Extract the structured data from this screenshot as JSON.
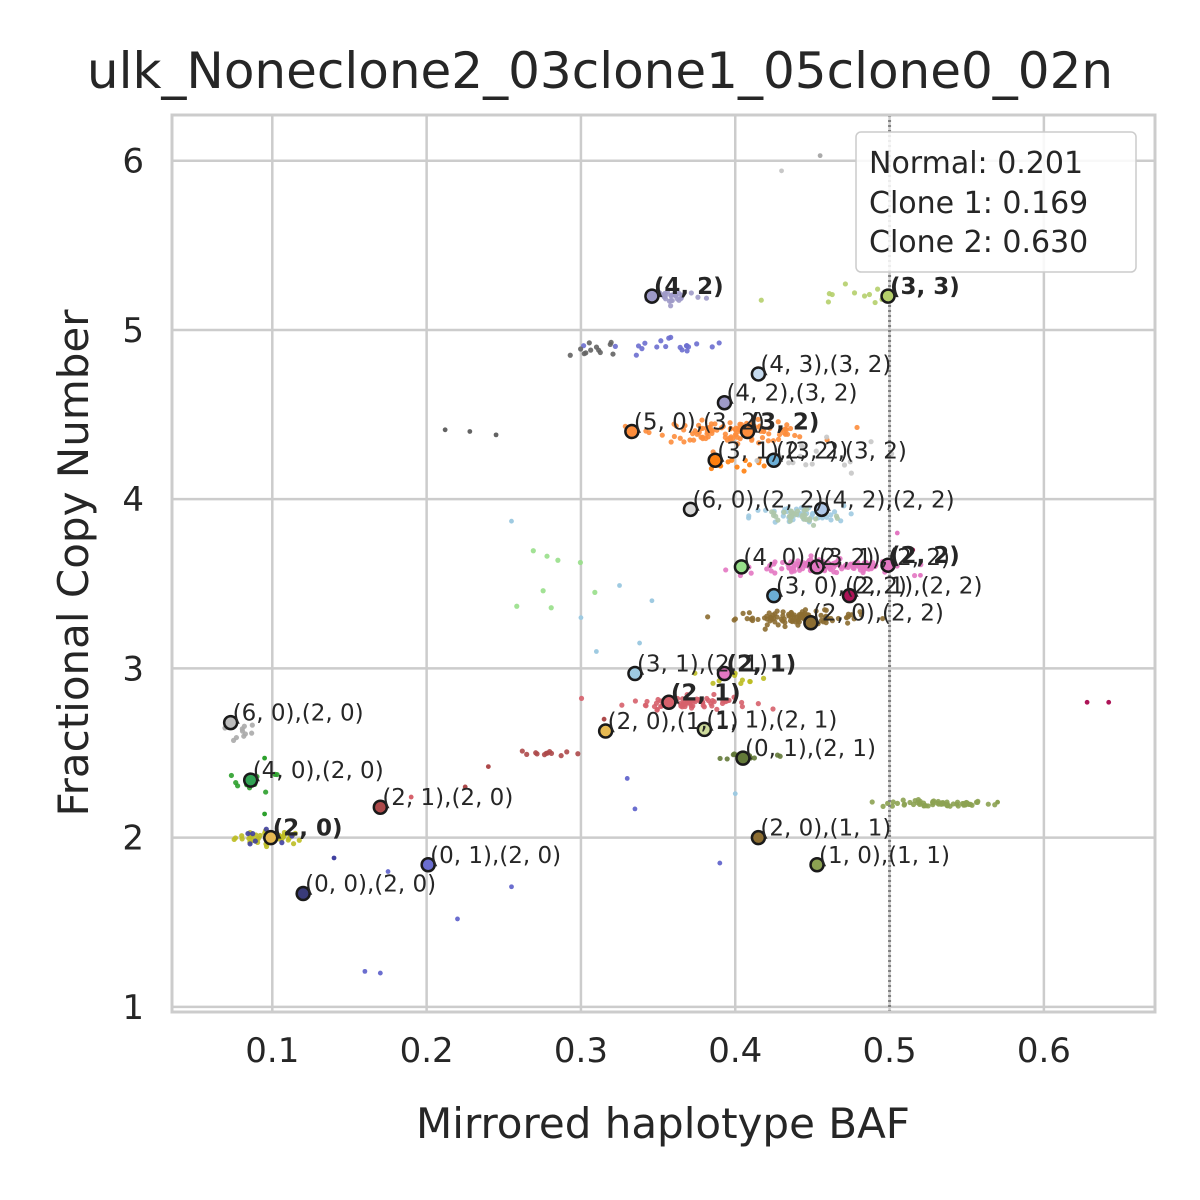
{
  "chart_data": {
    "type": "scatter",
    "title": "ulk_Noneclone2_03clone1_05clone0_02n",
    "xlabel": "Mirrored haplotype BAF",
    "ylabel": "Fractional Copy Number",
    "xlim": [
      0.035,
      0.672
    ],
    "ylim": [
      0.97,
      6.27
    ],
    "x_ticks": [
      "0.1",
      "0.2",
      "0.3",
      "0.4",
      "0.5",
      "0.6"
    ],
    "y_ticks": [
      "1",
      "2",
      "3",
      "4",
      "5",
      "6"
    ],
    "grid": true,
    "legend_location": "top-right",
    "legend": [
      "Normal: 0.201",
      "Clone 1: 0.169",
      "Clone 2: 0.630"
    ],
    "reference_line": {
      "x": 0.5,
      "style": "dotted",
      "color": "#808080"
    },
    "clusters": [
      {
        "x": 0.1,
        "y": 2.0,
        "color": "#bcbd22",
        "n": 40,
        "sx": 0.012,
        "sy": 0.02
      },
      {
        "x": 0.09,
        "y": 2.33,
        "color": "#2ca02c",
        "n": 14,
        "sx": 0.008,
        "sy": 0.03
      },
      {
        "x": 0.075,
        "y": 2.62,
        "color": "#aaaaaa",
        "n": 10,
        "sx": 0.008,
        "sy": 0.03
      },
      {
        "x": 0.095,
        "y": 2.0,
        "color": "#4040a0",
        "n": 8,
        "sx": 0.01,
        "sy": 0.03
      },
      {
        "x": 0.53,
        "y": 2.2,
        "color": "#8ca252",
        "n": 60,
        "sx": 0.018,
        "sy": 0.01
      },
      {
        "x": 0.37,
        "y": 2.8,
        "color": "#d6616b",
        "n": 70,
        "sx": 0.02,
        "sy": 0.02
      },
      {
        "x": 0.28,
        "y": 2.5,
        "color": "#ad494a",
        "n": 12,
        "sx": 0.01,
        "sy": 0.01
      },
      {
        "x": 0.44,
        "y": 3.3,
        "color": "#8c6d31",
        "n": 100,
        "sx": 0.02,
        "sy": 0.02
      },
      {
        "x": 0.46,
        "y": 3.6,
        "color": "#e377c2",
        "n": 140,
        "sx": 0.025,
        "sy": 0.02
      },
      {
        "x": 0.4,
        "y": 4.4,
        "color": "#fd8d3c",
        "n": 110,
        "sx": 0.025,
        "sy": 0.03
      },
      {
        "x": 0.44,
        "y": 3.9,
        "color": "#9ecae1",
        "n": 40,
        "sx": 0.015,
        "sy": 0.03
      },
      {
        "x": 0.44,
        "y": 3.9,
        "color": "#aec7aa",
        "n": 30,
        "sx": 0.015,
        "sy": 0.03
      },
      {
        "x": 0.36,
        "y": 5.2,
        "color": "#9e9ac8",
        "n": 30,
        "sx": 0.01,
        "sy": 0.02
      },
      {
        "x": 0.36,
        "y": 4.9,
        "color": "#6b6ecf",
        "n": 20,
        "sx": 0.02,
        "sy": 0.03
      },
      {
        "x": 0.46,
        "y": 5.2,
        "color": "#b5cf6b",
        "n": 10,
        "sx": 0.02,
        "sy": 0.04
      },
      {
        "x": 0.31,
        "y": 4.9,
        "color": "#636363",
        "n": 12,
        "sx": 0.01,
        "sy": 0.03
      },
      {
        "x": 0.41,
        "y": 2.48,
        "color": "#637939",
        "n": 12,
        "sx": 0.008,
        "sy": 0.01
      },
      {
        "x": 0.4,
        "y": 2.95,
        "color": "#bcbd22",
        "n": 10,
        "sx": 0.01,
        "sy": 0.02
      },
      {
        "x": 0.28,
        "y": 3.5,
        "color": "#98df8a",
        "n": 8,
        "sx": 0.02,
        "sy": 0.15
      },
      {
        "x": 0.4,
        "y": 4.2,
        "color": "#ff7f0e",
        "n": 12,
        "sx": 0.015,
        "sy": 0.03
      },
      {
        "x": 0.44,
        "y": 4.25,
        "color": "#c7c7c7",
        "n": 15,
        "sx": 0.03,
        "sy": 0.05
      }
    ],
    "stray_points": [
      {
        "x": 0.455,
        "y": 6.03,
        "color": "#aaaaaa"
      },
      {
        "x": 0.43,
        "y": 5.94,
        "color": "#c7c7c7"
      },
      {
        "x": 0.212,
        "y": 4.41,
        "color": "#636363"
      },
      {
        "x": 0.228,
        "y": 4.4,
        "color": "#636363"
      },
      {
        "x": 0.245,
        "y": 4.38,
        "color": "#636363"
      },
      {
        "x": 0.255,
        "y": 3.87,
        "color": "#9ecae1"
      },
      {
        "x": 0.628,
        "y": 2.8,
        "color": "#ad1457"
      },
      {
        "x": 0.642,
        "y": 2.8,
        "color": "#ad1457"
      },
      {
        "x": 0.57,
        "y": 2.21,
        "color": "#8ca252"
      },
      {
        "x": 0.16,
        "y": 1.21,
        "color": "#6b6ecf"
      },
      {
        "x": 0.17,
        "y": 1.2,
        "color": "#6b6ecf"
      },
      {
        "x": 0.22,
        "y": 1.52,
        "color": "#6b6ecf"
      },
      {
        "x": 0.255,
        "y": 1.71,
        "color": "#6b6ecf"
      },
      {
        "x": 0.39,
        "y": 1.85,
        "color": "#6b6ecf"
      },
      {
        "x": 0.175,
        "y": 1.8,
        "color": "#6b6ecf"
      },
      {
        "x": 0.325,
        "y": 3.49,
        "color": "#9ecae1"
      },
      {
        "x": 0.338,
        "y": 3.15,
        "color": "#9ecae1"
      },
      {
        "x": 0.31,
        "y": 3.1,
        "color": "#9ecae1"
      },
      {
        "x": 0.3,
        "y": 3.3,
        "color": "#9ecae1"
      },
      {
        "x": 0.346,
        "y": 3.4,
        "color": "#9ecae1"
      },
      {
        "x": 0.33,
        "y": 2.35,
        "color": "#6b6ecf"
      },
      {
        "x": 0.335,
        "y": 2.17,
        "color": "#6b6ecf"
      },
      {
        "x": 0.315,
        "y": 2.7,
        "color": "#ad494a"
      },
      {
        "x": 0.24,
        "y": 2.42,
        "color": "#ad494a"
      },
      {
        "x": 0.225,
        "y": 2.3,
        "color": "#ad494a"
      },
      {
        "x": 0.19,
        "y": 2.24,
        "color": "#d6616b"
      },
      {
        "x": 0.14,
        "y": 1.88,
        "color": "#4040a0"
      },
      {
        "x": 0.095,
        "y": 2.14,
        "color": "#2ca02c"
      },
      {
        "x": 0.095,
        "y": 2.47,
        "color": "#2ca02c"
      },
      {
        "x": 0.505,
        "y": 3.8,
        "color": "#e377c2"
      },
      {
        "x": 0.515,
        "y": 3.7,
        "color": "#ad1457"
      },
      {
        "x": 0.52,
        "y": 3.55,
        "color": "#e377c2"
      },
      {
        "x": 0.495,
        "y": 5.18,
        "color": "#b5cf6b"
      },
      {
        "x": 0.4,
        "y": 2.26,
        "color": "#9ecae1"
      }
    ],
    "highlighted_points": [
      {
        "x": 0.346,
        "y": 5.2,
        "label": "(4, 2)",
        "bold": true,
        "color": "#9e9ac8"
      },
      {
        "x": 0.499,
        "y": 5.2,
        "label": "(3, 3)",
        "bold": true,
        "color": "#b5cf6b"
      },
      {
        "x": 0.415,
        "y": 4.74,
        "label": "(4, 3),(3, 2)",
        "bold": false,
        "color": "#c6dbef"
      },
      {
        "x": 0.393,
        "y": 4.57,
        "label": "(4, 2),(3, 2)",
        "bold": false,
        "color": "#9e9ac8"
      },
      {
        "x": 0.333,
        "y": 4.4,
        "label": "(5, 0),(3, 2)",
        "bold": false,
        "color": "#fd8d3c"
      },
      {
        "x": 0.408,
        "y": 4.4,
        "label": "(3, 2)",
        "bold": true,
        "color": "#fd8d3c"
      },
      {
        "x": 0.387,
        "y": 4.23,
        "label": "(3, 1),(3, 2)",
        "bold": false,
        "color": "#ff7f0e"
      },
      {
        "x": 0.425,
        "y": 4.23,
        "label": "(2, 2),(3, 2)",
        "bold": false,
        "color": "#6baed6"
      },
      {
        "x": 0.371,
        "y": 3.94,
        "label": "(6, 0),(2, 2)",
        "bold": false,
        "color": "#d9d9d9"
      },
      {
        "x": 0.456,
        "y": 3.94,
        "label": "(4, 2),(2, 2)",
        "bold": false,
        "color": "#aec7e8"
      },
      {
        "x": 0.404,
        "y": 3.6,
        "label": "(4, 0),(2, 2)",
        "bold": false,
        "color": "#98df8a"
      },
      {
        "x": 0.453,
        "y": 3.6,
        "label": "(3, 1),(2, 2)",
        "bold": false,
        "color": "#e377c2"
      },
      {
        "x": 0.499,
        "y": 3.61,
        "label": "(2, 2)",
        "bold": true,
        "color": "#e377c2"
      },
      {
        "x": 0.425,
        "y": 3.43,
        "label": "(3, 0),(2, 2)",
        "bold": false,
        "color": "#6baed6"
      },
      {
        "x": 0.474,
        "y": 3.43,
        "label": "(2, 1),(2, 2)",
        "bold": false,
        "color": "#ad1457"
      },
      {
        "x": 0.449,
        "y": 3.27,
        "label": "(2, 0),(2, 2)",
        "bold": false,
        "color": "#8c6d31"
      },
      {
        "x": 0.335,
        "y": 2.97,
        "label": "(3, 1),(2, 1)",
        "bold": false,
        "color": "#9ecae1"
      },
      {
        "x": 0.393,
        "y": 2.97,
        "label": "(2, 1)",
        "bold": true,
        "color": "#e377c2"
      },
      {
        "x": 0.357,
        "y": 2.8,
        "label": "(2, 1)",
        "bold": true,
        "color": "#d6616b"
      },
      {
        "x": 0.316,
        "y": 2.63,
        "label": "(2, 0),(1, 1)",
        "bold": false,
        "color": "#e7ba52"
      },
      {
        "x": 0.38,
        "y": 2.64,
        "label": "(1, 1),(2, 1)",
        "bold": false,
        "color": "#cedb9c"
      },
      {
        "x": 0.405,
        "y": 2.47,
        "label": "(0, 1),(2, 1)",
        "bold": false,
        "color": "#637939"
      },
      {
        "x": 0.073,
        "y": 2.68,
        "label": "(6, 0),(2, 0)",
        "bold": false,
        "color": "#bdbdbd"
      },
      {
        "x": 0.086,
        "y": 2.34,
        "label": "(4, 0),(2, 0)",
        "bold": false,
        "color": "#31a354"
      },
      {
        "x": 0.17,
        "y": 2.18,
        "label": "(2, 1),(2, 0)",
        "bold": false,
        "color": "#ad494a"
      },
      {
        "x": 0.099,
        "y": 2.0,
        "label": "(2, 0)",
        "bold": true,
        "color": "#e7ba52"
      },
      {
        "x": 0.201,
        "y": 1.84,
        "label": "(0, 1),(2, 0)",
        "bold": false,
        "color": "#6b6ecf"
      },
      {
        "x": 0.12,
        "y": 1.67,
        "label": "(0, 0),(2, 0)",
        "bold": false,
        "color": "#393b79"
      },
      {
        "x": 0.415,
        "y": 2.0,
        "label": "(2, 0),(1, 1)",
        "bold": false,
        "color": "#8c6d31"
      },
      {
        "x": 0.453,
        "y": 1.84,
        "label": "(1, 0),(1, 1)",
        "bold": false,
        "color": "#8ca252"
      }
    ]
  }
}
